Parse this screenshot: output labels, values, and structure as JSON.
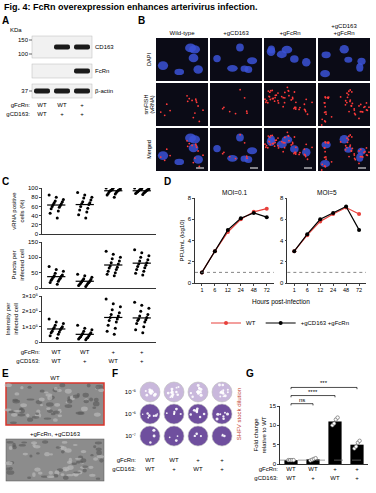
{
  "title": "Fig. 4: FcRn overexpression enhances arterivirus infection.",
  "panel_A": {
    "letter": "A",
    "unit": "KDa",
    "markers": [
      150,
      100,
      37
    ],
    "proteins": [
      {
        "name": "CD163",
        "bands": [
          false,
          true,
          true
        ]
      },
      {
        "name": "FcRn",
        "bands": [
          false,
          false,
          true
        ]
      },
      {
        "name": "β-actin",
        "bands": [
          true,
          true,
          true
        ]
      }
    ],
    "genotype": [
      {
        "label": "gFcRn:",
        "values": [
          "WT",
          "WT",
          "+"
        ]
      },
      {
        "label": "gCD163:",
        "values": [
          "WT",
          "+",
          "+"
        ]
      }
    ]
  },
  "panel_B": {
    "letter": "B",
    "columns": [
      "Wild-type",
      "+gCD163",
      "+gFcRn",
      "+gCD163 +gFcRn"
    ],
    "rows": [
      "DAPI",
      "smFISH (vRNA)",
      "Merged"
    ]
  },
  "panel_C": {
    "letter": "C",
    "genotype": [
      {
        "label": "gFcRn:",
        "values": [
          "WT",
          "WT",
          "+",
          "+"
        ]
      },
      {
        "label": "gCD163:",
        "values": [
          "WT",
          "+",
          "WT",
          "+"
        ]
      }
    ]
  },
  "panel_D": {
    "letter": "D"
  },
  "panel_E": {
    "letter": "E",
    "images": [
      "WT",
      "+gFcRn, +gCD163"
    ]
  },
  "panel_F": {
    "letter": "F",
    "side_label": "SHFV stock dilution",
    "row_labels": [
      "10⁻⁵",
      "10⁻⁶",
      "10⁻⁷"
    ],
    "genotype": [
      {
        "label": "gFcRn:",
        "values": [
          "WT",
          "WT",
          "+",
          "+"
        ]
      },
      {
        "label": "gCD163:",
        "values": [
          "WT",
          "+",
          "WT",
          "+"
        ]
      }
    ]
  },
  "panel_G": {
    "letter": "G",
    "genotype": [
      {
        "label": "gFcRn:",
        "values": [
          "WT",
          "WT",
          "+",
          "+"
        ]
      },
      {
        "label": "gCD163:",
        "values": [
          "WT",
          "+",
          "WT",
          "+"
        ]
      }
    ]
  },
  "chart_data": [
    {
      "type": "scatter",
      "y_label": "vRNA positive cells (%)",
      "categories": [
        null,
        null,
        null,
        null
      ],
      "values": [
        [
          85,
          80,
          75,
          72,
          70,
          68,
          66,
          64,
          62,
          60,
          58,
          55,
          50,
          45,
          35
        ],
        [
          90,
          85,
          80,
          78,
          74,
          70,
          68,
          66,
          64,
          60,
          56,
          52,
          48,
          42,
          35
        ],
        [
          100,
          100,
          98,
          97,
          96,
          95,
          95,
          94,
          93,
          92,
          90,
          88,
          87,
          85,
          80
        ],
        [
          100,
          99,
          98,
          97,
          96,
          96,
          95,
          94,
          93,
          92,
          91,
          90,
          89,
          88,
          86
        ]
      ],
      "means": [
        63,
        64,
        94,
        94
      ],
      "color": "#000000",
      "marker": "circle",
      "ylim": [
        0,
        100
      ],
      "yticks": [
        0,
        20,
        40,
        60,
        80,
        100
      ],
      "tick_labels": "y"
    },
    {
      "type": "scatter",
      "y_label": "Puncta per infected cell",
      "categories": [
        null,
        null,
        null,
        null
      ],
      "values": [
        [
          70,
          60,
          55,
          48,
          42,
          40,
          38,
          35,
          32,
          30,
          28,
          25,
          22,
          18,
          12
        ],
        [
          45,
          40,
          35,
          30,
          28,
          25,
          22,
          20,
          18,
          16,
          15,
          12,
          10,
          8,
          5
        ],
        [
          120,
          110,
          100,
          95,
          88,
          82,
          78,
          72,
          68,
          65,
          60,
          55,
          50,
          45,
          40
        ],
        [
          125,
          115,
          105,
          100,
          92,
          88,
          82,
          78,
          74,
          70,
          66,
          60,
          55,
          48,
          42
        ]
      ],
      "means": [
        37,
        22,
        75,
        81
      ],
      "color": "#000000",
      "marker": "circle",
      "ylim": [
        0,
        150
      ],
      "yticks": [
        0,
        50,
        100,
        150
      ],
      "tick_labels": "y"
    },
    {
      "type": "scatter",
      "y_label": "Intensity per infected cell",
      "categories": [
        null,
        null,
        null,
        null
      ],
      "values": [
        [
          150000,
          130000,
          120000,
          110000,
          100000,
          95000,
          90000,
          85000,
          80000,
          70000,
          65000,
          60000,
          50000,
          40000,
          25000
        ],
        [
          110000,
          90000,
          80000,
          70000,
          60000,
          55000,
          50000,
          45000,
          40000,
          35000,
          30000,
          28000,
          25000,
          20000,
          15000
        ],
        [
          280000,
          250000,
          230000,
          210000,
          190000,
          180000,
          170000,
          160000,
          150000,
          140000,
          130000,
          110000,
          90000,
          70000,
          50000
        ],
        [
          260000,
          240000,
          220000,
          200000,
          180000,
          170000,
          160000,
          150000,
          145000,
          140000,
          130000,
          120000,
          100000,
          80000,
          60000
        ]
      ],
      "means": [
        85000,
        50000,
        160000,
        157000
      ],
      "color": "#000000",
      "marker": "circle",
      "ylim": [
        0,
        300000
      ],
      "yticks": [
        0,
        {
          "value": 100000,
          "label": "1×10⁵"
        },
        {
          "value": 200000,
          "label": "2×10⁵"
        },
        {
          "value": 300000,
          "label": "3×10⁵"
        }
      ],
      "tick_labels": "y"
    },
    {
      "type": "line",
      "y_label": "PFU/mL (log10)",
      "x_label": "Hours post-infection",
      "categories": [
        "1",
        "6",
        "12",
        "24",
        "48",
        "72"
      ],
      "panels": [
        {
          "title": "MOI=0.1",
          "series": [
            {
              "name": "WT",
              "color": "#e8413c",
              "values": [
                1,
                3,
                4.8,
                6,
                6.7,
                7
              ]
            },
            {
              "name": "+gCD163 +gFcRn",
              "color": "#000000",
              "values": [
                1,
                3,
                5,
                6.1,
                6.6,
                6.2
              ]
            }
          ]
        },
        {
          "title": "MOI=5",
          "series": [
            {
              "name": "WT",
              "color": "#e8413c",
              "values": [
                3,
                4.5,
                5.8,
                6.5,
                7.1,
                6.5
              ]
            },
            {
              "name": "+gCD163 +gFcRn",
              "color": "#000000",
              "values": [
                3,
                4.6,
                6,
                6.6,
                7.2,
                5
              ]
            }
          ]
        }
      ],
      "detection_limit": 1,
      "marker": "circle",
      "legend": "bottom",
      "ylim": [
        0,
        8
      ],
      "yticks": [
        0,
        2,
        4,
        6,
        8
      ]
    },
    {
      "type": "bar",
      "y_label": "Fold change relative to WT",
      "categories": [
        null,
        null,
        null,
        null
      ],
      "values": [
        1,
        1.2,
        11,
        5
      ],
      "points": [
        [
          1,
          1,
          1,
          1
        ],
        [
          0.9,
          1.1,
          1.3,
          1.5
        ],
        [
          10,
          10.5,
          11.5,
          12
        ],
        [
          4,
          4.5,
          5.5,
          6
        ]
      ],
      "color": "#000000",
      "reference_line": 1,
      "comparisons": [
        {
          "groups": [
            0,
            1
          ],
          "label": "ns"
        },
        {
          "groups": [
            0,
            2
          ],
          "label": "****"
        },
        {
          "groups": [
            0,
            3
          ],
          "label": "***"
        }
      ],
      "ylim": [
        0,
        15
      ],
      "yticks": [
        0,
        5,
        10,
        15
      ],
      "tick_labels": "y"
    }
  ]
}
